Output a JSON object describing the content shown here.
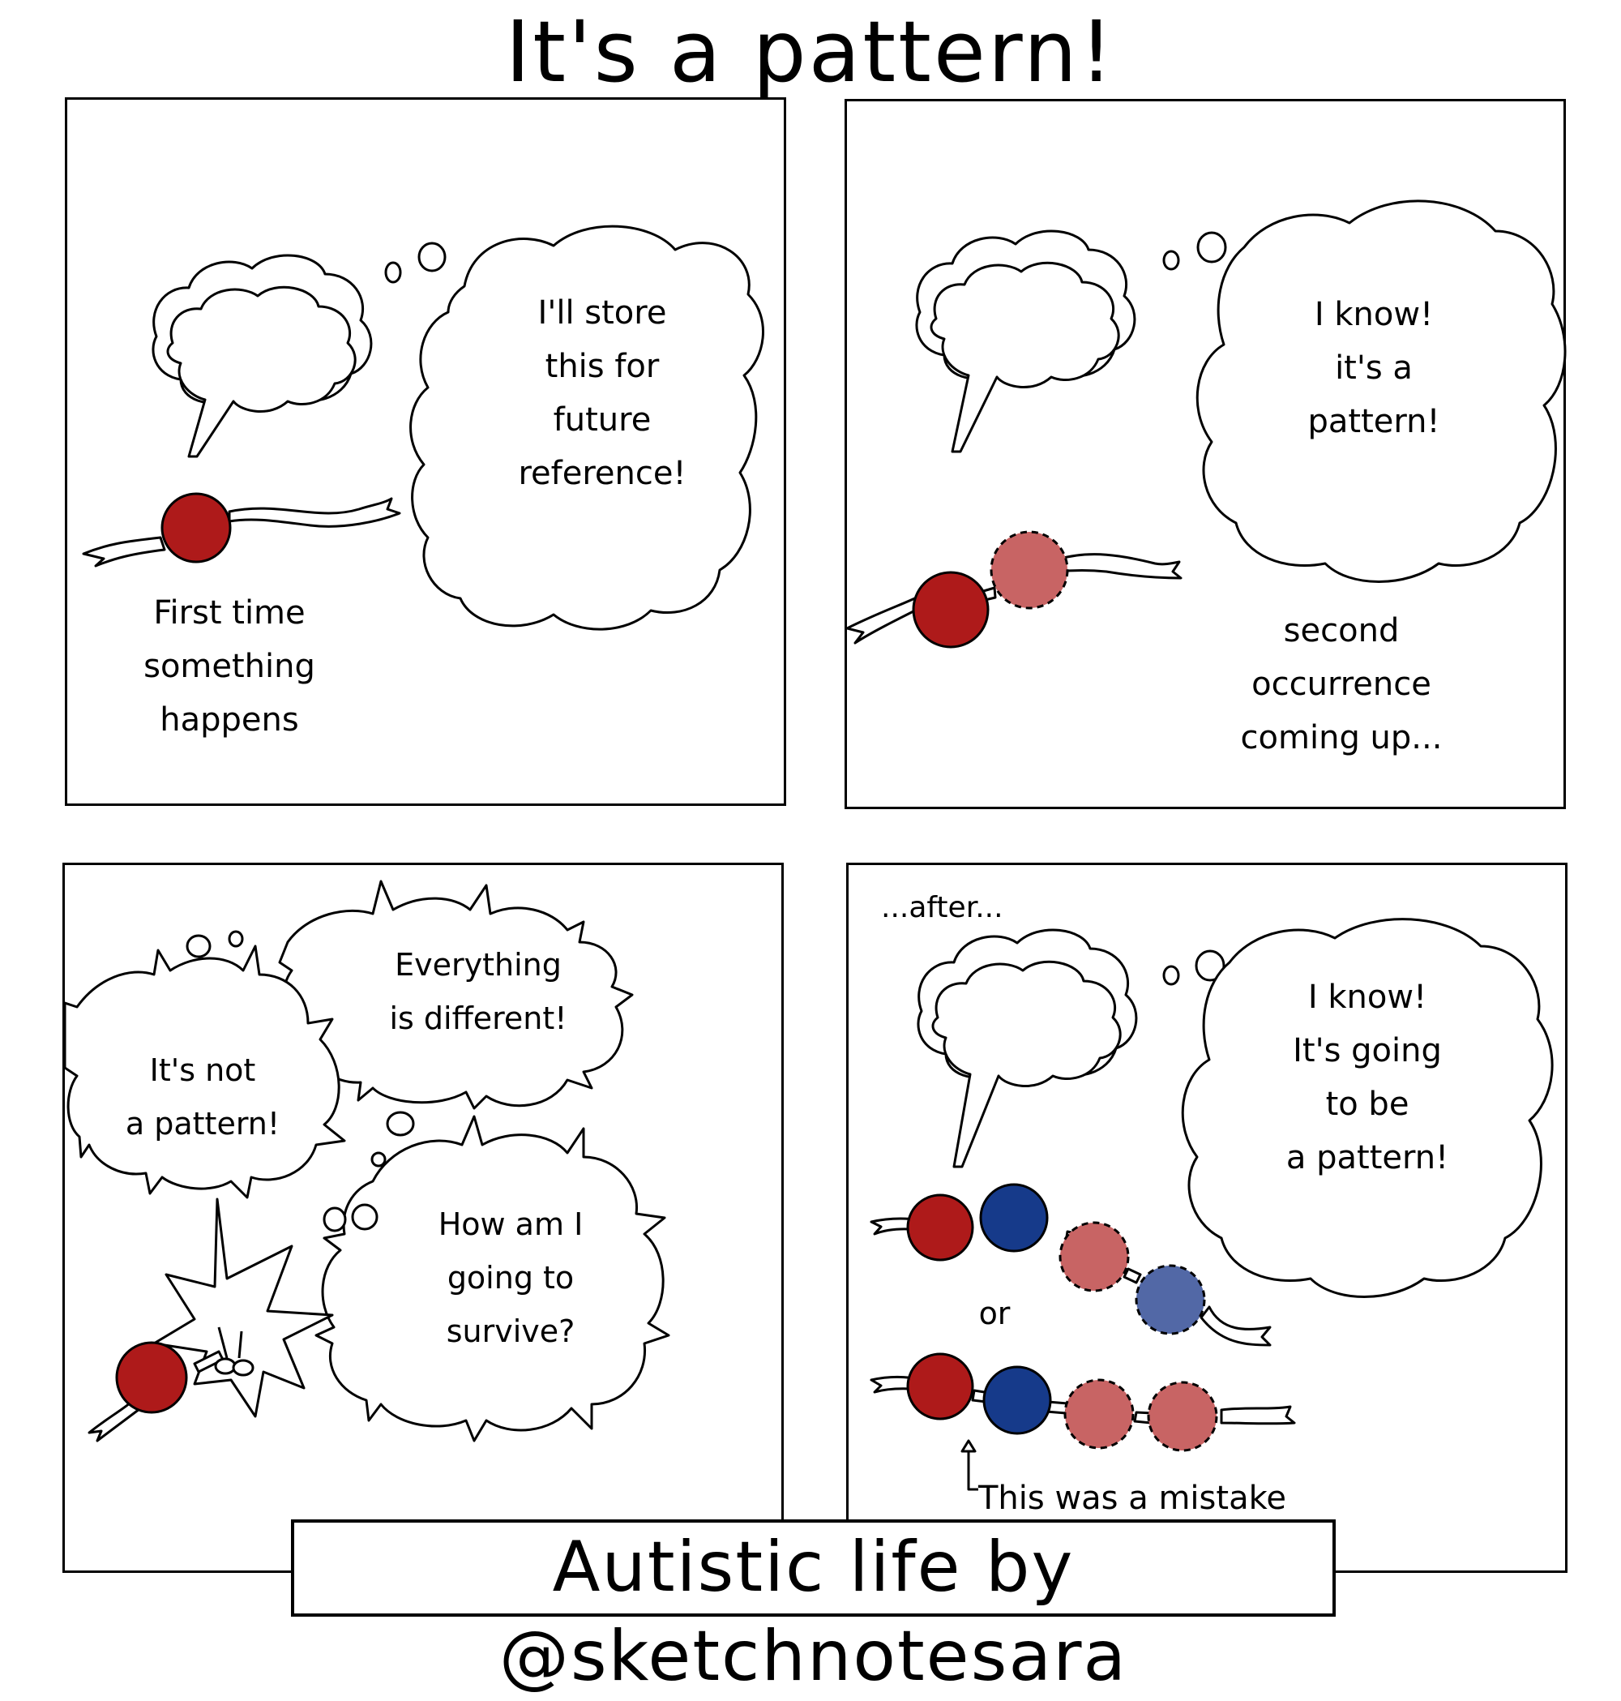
{
  "title": "It's a pattern!",
  "colors": {
    "red_bead": "#AE1A1A",
    "red_bead_faded": "#C86464",
    "blue_bead": "#163A8A",
    "blue_bead_faded": "#5268A6",
    "ink": "#000000"
  },
  "panels": [
    {
      "thought": "I'll store\nthis for\nfuture\nreference!",
      "caption": "First time\nsomething\nhappens"
    },
    {
      "thought": "I know!\nit's a\npattern!",
      "caption": "second\noccurrence\ncoming up..."
    },
    {
      "thought_top": "Everything\nis different!",
      "thought_left": "It's not\na pattern!",
      "thought_bottom": "How am I\ngoing to\nsurvive?"
    },
    {
      "caption_top": "...after...",
      "thought": "I know!\nIt's going\nto be\na pattern!",
      "or_label": "or",
      "mistake_note": "This was a mistake"
    }
  ],
  "footer": "Autistic life by @sketchnotesara"
}
